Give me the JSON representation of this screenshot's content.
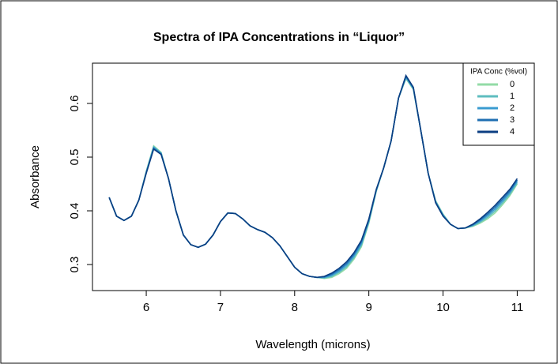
{
  "chart_data": {
    "type": "line",
    "title": "Spectra of IPA Concentrations in “Liquor”",
    "xlabel": "Wavelength (microns)",
    "ylabel": "Absorbance",
    "xlim": [
      5.275,
      11.23
    ],
    "ylim": [
      0.2515,
      0.675
    ],
    "xticks": [
      6,
      7,
      8,
      9,
      10,
      11
    ],
    "yticks": [
      0.3,
      0.4,
      0.5,
      0.6
    ],
    "legend_title": "IPA Conc (%vol)",
    "legend": "top-right",
    "x": [
      5.5,
      5.6,
      5.7,
      5.8,
      5.9,
      6.0,
      6.1,
      6.2,
      6.3,
      6.4,
      6.5,
      6.6,
      6.7,
      6.8,
      6.9,
      7.0,
      7.1,
      7.2,
      7.3,
      7.4,
      7.5,
      7.6,
      7.7,
      7.8,
      7.9,
      8.0,
      8.1,
      8.2,
      8.3,
      8.4,
      8.5,
      8.6,
      8.7,
      8.8,
      8.9,
      9.0,
      9.1,
      9.2,
      9.3,
      9.4,
      9.5,
      9.6,
      9.7,
      9.8,
      9.9,
      10.0,
      10.1,
      10.2,
      10.3,
      10.4,
      10.5,
      10.6,
      10.7,
      10.8,
      10.9,
      11.0
    ],
    "series": [
      {
        "name": "0",
        "color": "#93dba6",
        "values": [
          0.425,
          0.39,
          0.382,
          0.39,
          0.42,
          0.474,
          0.521,
          0.509,
          0.46,
          0.4,
          0.355,
          0.337,
          0.332,
          0.338,
          0.355,
          0.38,
          0.396,
          0.395,
          0.385,
          0.372,
          0.365,
          0.36,
          0.35,
          0.335,
          0.315,
          0.295,
          0.283,
          0.278,
          0.276,
          0.274,
          0.276,
          0.283,
          0.293,
          0.31,
          0.333,
          0.377,
          0.436,
          0.48,
          0.53,
          0.61,
          0.646,
          0.626,
          0.55,
          0.47,
          0.419,
          0.394,
          0.375,
          0.367,
          0.368,
          0.371,
          0.377,
          0.385,
          0.396,
          0.411,
          0.428,
          0.45
        ]
      },
      {
        "name": "1",
        "color": "#5ebdbf",
        "values": [
          0.425,
          0.39,
          0.382,
          0.39,
          0.42,
          0.473,
          0.5195,
          0.508,
          0.46,
          0.4,
          0.355,
          0.337,
          0.332,
          0.338,
          0.355,
          0.38,
          0.396,
          0.395,
          0.385,
          0.372,
          0.365,
          0.36,
          0.35,
          0.335,
          0.315,
          0.295,
          0.283,
          0.278,
          0.276,
          0.275,
          0.278,
          0.2855,
          0.296,
          0.313,
          0.336,
          0.379,
          0.437,
          0.48,
          0.53,
          0.61,
          0.6475,
          0.627,
          0.55,
          0.47,
          0.418,
          0.393,
          0.375,
          0.367,
          0.368,
          0.372,
          0.379,
          0.388,
          0.3995,
          0.4145,
          0.431,
          0.4525
        ]
      },
      {
        "name": "2",
        "color": "#3a9bd0",
        "values": [
          0.425,
          0.39,
          0.382,
          0.39,
          0.42,
          0.472,
          0.518,
          0.507,
          0.46,
          0.4,
          0.355,
          0.337,
          0.332,
          0.338,
          0.355,
          0.38,
          0.396,
          0.395,
          0.385,
          0.372,
          0.365,
          0.36,
          0.35,
          0.335,
          0.315,
          0.295,
          0.283,
          0.278,
          0.276,
          0.276,
          0.28,
          0.288,
          0.299,
          0.316,
          0.339,
          0.381,
          0.438,
          0.48,
          0.53,
          0.61,
          0.649,
          0.628,
          0.55,
          0.47,
          0.417,
          0.392,
          0.375,
          0.367,
          0.368,
          0.373,
          0.381,
          0.391,
          0.403,
          0.418,
          0.434,
          0.455
        ]
      },
      {
        "name": "3",
        "color": "#1f6fb2",
        "values": [
          0.425,
          0.39,
          0.382,
          0.39,
          0.42,
          0.471,
          0.5165,
          0.506,
          0.46,
          0.4,
          0.355,
          0.337,
          0.332,
          0.338,
          0.355,
          0.38,
          0.396,
          0.395,
          0.385,
          0.372,
          0.365,
          0.36,
          0.35,
          0.335,
          0.315,
          0.295,
          0.283,
          0.278,
          0.276,
          0.277,
          0.282,
          0.2905,
          0.302,
          0.319,
          0.342,
          0.383,
          0.439,
          0.48,
          0.53,
          0.61,
          0.6505,
          0.629,
          0.55,
          0.47,
          0.416,
          0.391,
          0.375,
          0.367,
          0.368,
          0.374,
          0.383,
          0.394,
          0.4065,
          0.4215,
          0.437,
          0.4575
        ]
      },
      {
        "name": "4",
        "color": "#0b3e82",
        "values": [
          0.425,
          0.39,
          0.382,
          0.39,
          0.42,
          0.47,
          0.515,
          0.505,
          0.46,
          0.4,
          0.355,
          0.337,
          0.332,
          0.338,
          0.355,
          0.38,
          0.396,
          0.395,
          0.385,
          0.372,
          0.365,
          0.36,
          0.35,
          0.335,
          0.315,
          0.295,
          0.283,
          0.278,
          0.276,
          0.278,
          0.284,
          0.293,
          0.305,
          0.322,
          0.345,
          0.385,
          0.44,
          0.48,
          0.53,
          0.61,
          0.652,
          0.63,
          0.55,
          0.47,
          0.415,
          0.39,
          0.375,
          0.367,
          0.368,
          0.375,
          0.385,
          0.397,
          0.41,
          0.425,
          0.44,
          0.46
        ]
      }
    ]
  }
}
